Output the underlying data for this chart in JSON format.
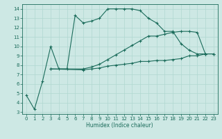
{
  "xlabel": "Humidex (Indice chaleur)",
  "background_color": "#cde8e4",
  "grid_color": "#b0d8d0",
  "line_color": "#1a6b5a",
  "xlim": [
    -0.5,
    23.5
  ],
  "ylim": [
    2.8,
    14.5
  ],
  "xticks": [
    0,
    1,
    2,
    3,
    4,
    5,
    6,
    7,
    8,
    9,
    10,
    11,
    12,
    13,
    14,
    15,
    16,
    17,
    18,
    19,
    20,
    21,
    22,
    23
  ],
  "yticks": [
    3,
    4,
    5,
    6,
    7,
    8,
    9,
    10,
    11,
    12,
    13,
    14
  ],
  "series": [
    {
      "x": [
        0,
        1,
        2,
        3,
        4,
        5,
        6,
        7,
        8,
        9,
        10,
        11,
        12,
        13,
        14,
        15,
        16,
        17,
        18,
        19,
        20,
        21,
        22
      ],
      "y": [
        4.8,
        3.3,
        6.3,
        10.0,
        7.6,
        7.6,
        13.3,
        12.5,
        12.7,
        13.0,
        14.0,
        14.0,
        14.0,
        14.0,
        13.8,
        13.0,
        12.5,
        11.6,
        11.6,
        10.3,
        9.6,
        9.2,
        9.2
      ]
    },
    {
      "x": [
        3,
        7,
        8,
        9,
        10,
        11,
        12,
        13,
        14,
        15,
        16,
        17,
        18,
        19,
        20,
        21,
        22,
        23
      ],
      "y": [
        7.6,
        7.5,
        7.6,
        7.7,
        7.9,
        8.0,
        8.1,
        8.2,
        8.4,
        8.4,
        8.5,
        8.5,
        8.6,
        8.7,
        9.0,
        9.0,
        9.2,
        9.2
      ]
    },
    {
      "x": [
        3,
        7,
        8,
        9,
        10,
        11,
        12,
        13,
        14,
        15,
        16,
        17,
        18,
        19,
        20,
        21,
        22,
        23
      ],
      "y": [
        7.6,
        7.6,
        7.8,
        8.1,
        8.6,
        9.1,
        9.6,
        10.1,
        10.6,
        11.1,
        11.1,
        11.3,
        11.5,
        11.6,
        11.6,
        11.5,
        9.2,
        9.2
      ]
    }
  ]
}
